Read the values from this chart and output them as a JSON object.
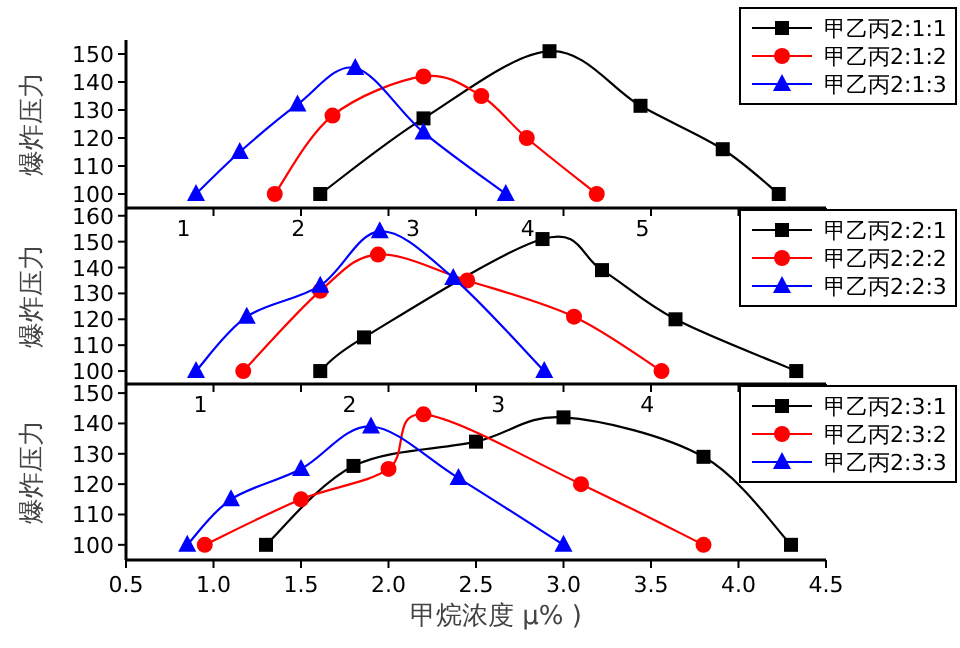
{
  "chart_data": [
    {
      "type": "line",
      "ylabel": "爆炸压力",
      "xlim": [
        0.5,
        4.5
      ],
      "xticks": [
        0.5,
        1,
        1.5,
        2,
        2.5,
        3,
        3.5,
        4,
        4.5
      ],
      "ylim": [
        95,
        155
      ],
      "yticks": [
        100,
        110,
        120,
        130,
        140,
        150
      ],
      "tick_labels": "y",
      "legend": "top right",
      "grid": false,
      "series": [
        {
          "name": "甲乙丙2:1:1",
          "color": "#000000",
          "marker": "square",
          "x": [
            1.61,
            2.2,
            2.92,
            3.44,
            3.91,
            4.23
          ],
          "values": [
            100,
            127,
            151,
            131.5,
            116,
            100
          ]
        },
        {
          "name": "甲乙丙2:1:2",
          "color": "#ff0000",
          "marker": "circle",
          "x": [
            1.35,
            1.68,
            2.2,
            2.53,
            2.79,
            3.19
          ],
          "values": [
            100,
            128,
            142,
            135,
            120,
            100
          ]
        },
        {
          "name": "甲乙丙2:1:3",
          "color": "#0000ff",
          "marker": "triangle",
          "x": [
            0.9,
            1.15,
            1.48,
            1.81,
            2.2,
            2.67
          ],
          "values": [
            100,
            115,
            132,
            145,
            122,
            100
          ]
        }
      ]
    },
    {
      "type": "line",
      "ylabel": "爆炸压力",
      "xlim": [
        0.5,
        4.5
      ],
      "xticks": [
        0.5,
        1,
        1.5,
        2,
        2.5,
        3,
        3.5,
        4,
        4.5
      ],
      "x2lim": [
        0.5,
        6.6
      ],
      "x2ticks": [
        1,
        2,
        3,
        4,
        5
      ],
      "ylim": [
        95,
        163
      ],
      "yticks": [
        100,
        110,
        120,
        130,
        140,
        150,
        160
      ],
      "tick_labels": "y",
      "legend": "top right",
      "grid": false,
      "series": [
        {
          "name": "甲乙丙2:2:1",
          "color": "#000000",
          "marker": "square",
          "x": [
            1.61,
            1.86,
            2.88,
            3.22,
            3.64,
            4.33
          ],
          "values": [
            100,
            113,
            151,
            139,
            120,
            100
          ]
        },
        {
          "name": "甲乙丙2:2:2",
          "color": "#ff0000",
          "marker": "circle",
          "x": [
            1.17,
            1.61,
            1.94,
            2.45,
            3.06,
            3.56
          ],
          "values": [
            100,
            131,
            145,
            135,
            121,
            100
          ]
        },
        {
          "name": "甲乙丙2:2:3",
          "color": "#0000ff",
          "marker": "triangle",
          "x": [
            0.9,
            1.19,
            1.61,
            1.95,
            2.37,
            2.89
          ],
          "values": [
            100,
            121,
            133,
            154,
            136,
            100
          ]
        }
      ]
    },
    {
      "type": "line",
      "ylabel": "爆炸压力",
      "xlabel": "甲烷浓度 μ% )",
      "xlim": [
        0.5,
        4.5
      ],
      "xticks": [
        0.5,
        {
          "value": 1,
          "label": "1.0"
        },
        1.5,
        {
          "value": 2,
          "label": "2.0"
        },
        2.5,
        {
          "value": 3,
          "label": "3.0"
        },
        3.5,
        {
          "value": 4,
          "label": "4.0"
        },
        4.5
      ],
      "x2lim": [
        0.5,
        5.2
      ],
      "x2ticks": [
        1,
        2,
        3,
        4
      ],
      "ylim": [
        95,
        153
      ],
      "yticks": [
        100,
        110,
        120,
        130,
        140,
        150
      ],
      "legend": "top right",
      "grid": false,
      "series": [
        {
          "name": "甲乙丙2:3:1",
          "color": "#000000",
          "marker": "square",
          "x": [
            1.3,
            1.8,
            2.5,
            3.0,
            3.8,
            4.3
          ],
          "values": [
            100,
            126,
            134,
            142,
            129,
            100
          ]
        },
        {
          "name": "甲乙丙2:3:2",
          "color": "#ff0000",
          "marker": "circle",
          "x": [
            0.95,
            1.5,
            2.0,
            2.2,
            3.1,
            3.8
          ],
          "values": [
            100,
            115,
            125,
            143,
            120,
            100
          ]
        },
        {
          "name": "甲乙丙2:3:3",
          "color": "#0000ff",
          "marker": "triangle",
          "x": [
            0.85,
            1.1,
            1.5,
            1.9,
            2.4,
            3.0
          ],
          "values": [
            100,
            115,
            125,
            139,
            122,
            100
          ]
        }
      ]
    }
  ]
}
